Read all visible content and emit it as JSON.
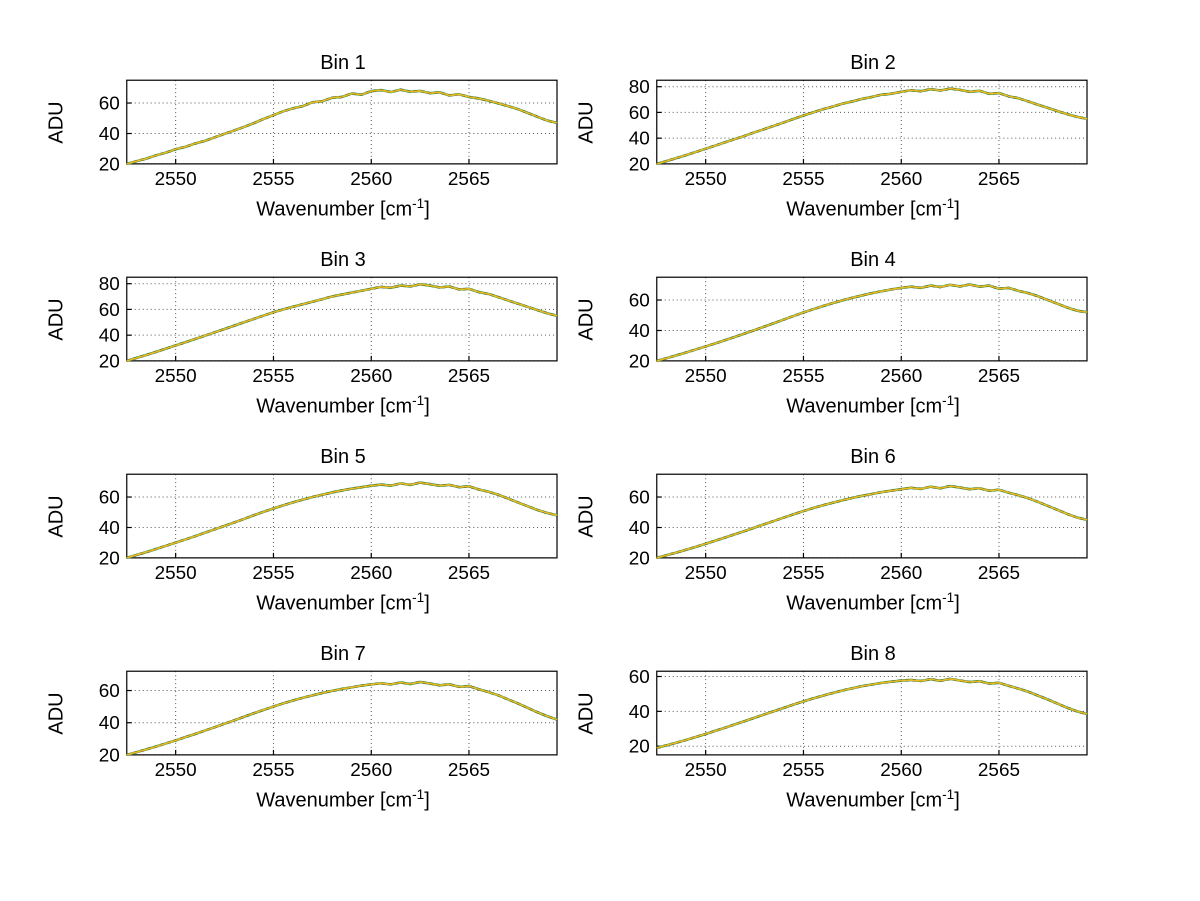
{
  "figure": {
    "background": "#ffffff",
    "ylabel": "ADU",
    "xlabel_prefix": "Wavenumber [cm",
    "xlabel_sup": "-1",
    "xlabel_suffix": "]"
  },
  "chart_data": [
    {
      "type": "line",
      "title": "Bin 1",
      "xlabel": "Wavenumber [cm^-1]",
      "ylabel": "ADU",
      "xlim": [
        2547.5,
        2569.5
      ],
      "ylim": [
        20,
        75
      ],
      "xticks": [
        2550,
        2555,
        2560,
        2565
      ],
      "yticks": [
        20,
        40,
        60
      ],
      "grid": "dotted",
      "line_colors": [
        "#2e9e4f",
        "#1a1a1a",
        "#e8bb22"
      ],
      "x_start": 2547.5,
      "x_step": 0.5,
      "values": [
        20.0,
        21.8,
        23.5,
        25.6,
        27.4,
        29.6,
        31.2,
        33.4,
        35.1,
        37.5,
        39.8,
        42.0,
        44.3,
        46.8,
        49.5,
        52.0,
        54.6,
        56.5,
        58.0,
        60.5,
        61.2,
        63.5,
        64.0,
        66.2,
        65.5,
        67.8,
        68.5,
        67.2,
        68.8,
        67.5,
        68.0,
        66.5,
        67.0,
        65.0,
        65.8,
        64.0,
        63.0,
        61.5,
        59.8,
        58.0,
        56.0,
        53.5,
        51.0,
        48.5,
        47.0
      ]
    },
    {
      "type": "line",
      "title": "Bin 2",
      "xlabel": "Wavenumber [cm^-1]",
      "ylabel": "ADU",
      "xlim": [
        2547.5,
        2569.5
      ],
      "ylim": [
        20,
        85
      ],
      "xticks": [
        2550,
        2555,
        2560,
        2565
      ],
      "yticks": [
        20,
        40,
        60,
        80
      ],
      "grid": "dotted",
      "line_colors": [
        "#2e9e4f",
        "#1a1a1a",
        "#e8bb22"
      ],
      "x_start": 2547.5,
      "x_step": 0.5,
      "values": [
        20.0,
        22.2,
        24.5,
        26.8,
        29.3,
        31.8,
        34.2,
        36.8,
        39.3,
        41.8,
        44.5,
        47.0,
        49.6,
        52.2,
        55.0,
        57.6,
        60.0,
        62.5,
        64.5,
        66.8,
        68.5,
        70.5,
        72.0,
        73.8,
        74.5,
        76.0,
        77.2,
        76.5,
        78.0,
        77.0,
        78.5,
        77.5,
        76.0,
        76.8,
        74.5,
        75.0,
        72.5,
        71.0,
        68.5,
        66.0,
        63.5,
        61.0,
        58.5,
        56.5,
        55.0
      ]
    },
    {
      "type": "line",
      "title": "Bin 3",
      "xlabel": "Wavenumber [cm^-1]",
      "ylabel": "ADU",
      "xlim": [
        2547.5,
        2569.5
      ],
      "ylim": [
        20,
        85
      ],
      "xticks": [
        2550,
        2555,
        2560,
        2565
      ],
      "yticks": [
        20,
        40,
        60,
        80
      ],
      "grid": "dotted",
      "line_colors": [
        "#2e9e4f",
        "#1a1a1a",
        "#e8bb22"
      ],
      "x_start": 2547.5,
      "x_step": 0.5,
      "values": [
        20.0,
        22.3,
        24.6,
        27.0,
        29.5,
        32.0,
        34.5,
        37.0,
        39.6,
        42.2,
        44.8,
        47.4,
        50.0,
        52.6,
        55.2,
        57.8,
        60.0,
        62.0,
        64.0,
        66.0,
        68.0,
        70.0,
        71.5,
        73.0,
        74.5,
        76.0,
        77.5,
        76.8,
        78.5,
        77.8,
        79.5,
        78.5,
        77.0,
        77.8,
        75.5,
        76.0,
        73.5,
        72.0,
        69.5,
        67.0,
        64.5,
        62.0,
        59.5,
        57.0,
        55.0
      ]
    },
    {
      "type": "line",
      "title": "Bin 4",
      "xlabel": "Wavenumber [cm^-1]",
      "ylabel": "ADU",
      "xlim": [
        2547.5,
        2569.5
      ],
      "ylim": [
        20,
        75
      ],
      "xticks": [
        2550,
        2555,
        2560,
        2565
      ],
      "yticks": [
        20,
        40,
        60
      ],
      "grid": "dotted",
      "line_colors": [
        "#2e9e4f",
        "#1a1a1a",
        "#e8bb22"
      ],
      "x_start": 2547.5,
      "x_step": 0.5,
      "values": [
        20.0,
        21.8,
        23.6,
        25.5,
        27.5,
        29.5,
        31.5,
        33.6,
        35.8,
        38.0,
        40.2,
        42.5,
        44.8,
        47.2,
        49.5,
        51.8,
        54.0,
        56.0,
        58.0,
        59.8,
        61.5,
        63.0,
        64.5,
        65.8,
        67.0,
        68.0,
        68.8,
        68.0,
        69.5,
        68.5,
        70.0,
        69.0,
        70.2,
        68.8,
        69.5,
        67.5,
        68.0,
        66.0,
        64.5,
        62.5,
        60.0,
        57.5,
        55.0,
        53.0,
        52.0
      ]
    },
    {
      "type": "line",
      "title": "Bin 5",
      "xlabel": "Wavenumber [cm^-1]",
      "ylabel": "ADU",
      "xlim": [
        2547.5,
        2569.5
      ],
      "ylim": [
        20,
        75
      ],
      "xticks": [
        2550,
        2555,
        2560,
        2565
      ],
      "yticks": [
        20,
        40,
        60
      ],
      "grid": "dotted",
      "line_colors": [
        "#2e9e4f",
        "#1a1a1a",
        "#e8bb22"
      ],
      "x_start": 2547.5,
      "x_step": 0.5,
      "values": [
        20.0,
        21.9,
        23.8,
        25.8,
        27.9,
        30.0,
        32.1,
        34.3,
        36.5,
        38.8,
        41.0,
        43.3,
        45.6,
        48.0,
        50.3,
        52.5,
        54.5,
        56.5,
        58.3,
        60.0,
        61.5,
        63.0,
        64.3,
        65.5,
        66.5,
        67.5,
        68.2,
        67.5,
        69.0,
        68.0,
        69.5,
        68.5,
        67.5,
        68.0,
        66.5,
        67.0,
        65.0,
        63.5,
        61.5,
        59.0,
        56.5,
        54.0,
        51.5,
        49.5,
        48.0
      ]
    },
    {
      "type": "line",
      "title": "Bin 6",
      "xlabel": "Wavenumber [cm^-1]",
      "ylabel": "ADU",
      "xlim": [
        2547.5,
        2569.5
      ],
      "ylim": [
        20,
        75
      ],
      "xticks": [
        2550,
        2555,
        2560,
        2565
      ],
      "yticks": [
        20,
        40,
        60
      ],
      "grid": "dotted",
      "line_colors": [
        "#2e9e4f",
        "#1a1a1a",
        "#e8bb22"
      ],
      "x_start": 2547.5,
      "x_step": 0.5,
      "values": [
        20.0,
        21.8,
        23.5,
        25.4,
        27.3,
        29.3,
        31.3,
        33.4,
        35.5,
        37.7,
        39.9,
        42.1,
        44.3,
        46.5,
        48.7,
        50.8,
        52.8,
        54.6,
        56.3,
        57.9,
        59.4,
        60.8,
        62.0,
        63.2,
        64.2,
        65.2,
        66.0,
        65.3,
        66.8,
        65.8,
        67.2,
        66.2,
        65.2,
        65.8,
        64.2,
        64.8,
        62.8,
        61.2,
        59.2,
        56.8,
        54.2,
        51.5,
        48.8,
        46.5,
        45.0
      ]
    },
    {
      "type": "line",
      "title": "Bin 7",
      "xlabel": "Wavenumber [cm^-1]",
      "ylabel": "ADU",
      "xlim": [
        2547.5,
        2569.5
      ],
      "ylim": [
        20,
        72
      ],
      "xticks": [
        2550,
        2555,
        2560,
        2565
      ],
      "yticks": [
        20,
        40,
        60
      ],
      "grid": "dotted",
      "line_colors": [
        "#2e9e4f",
        "#1a1a1a",
        "#e8bb22"
      ],
      "x_start": 2547.5,
      "x_step": 0.5,
      "values": [
        20.0,
        21.7,
        23.4,
        25.2,
        27.1,
        29.0,
        31.0,
        33.0,
        35.1,
        37.2,
        39.4,
        41.5,
        43.7,
        45.9,
        48.0,
        50.0,
        52.0,
        53.8,
        55.5,
        57.0,
        58.5,
        59.8,
        61.0,
        62.0,
        63.0,
        63.8,
        64.5,
        63.8,
        65.0,
        64.0,
        65.3,
        64.3,
        63.3,
        63.8,
        62.3,
        62.8,
        60.8,
        59.0,
        57.0,
        54.5,
        52.0,
        49.3,
        46.5,
        44.0,
        42.0
      ]
    },
    {
      "type": "line",
      "title": "Bin 8",
      "xlabel": "Wavenumber [cm^-1]",
      "ylabel": "ADU",
      "xlim": [
        2547.5,
        2569.5
      ],
      "ylim": [
        15,
        63
      ],
      "xticks": [
        2550,
        2555,
        2560,
        2565
      ],
      "yticks": [
        20,
        40,
        60
      ],
      "grid": "dotted",
      "line_colors": [
        "#2e9e4f",
        "#1a1a1a",
        "#e8bb22"
      ],
      "x_start": 2547.5,
      "x_step": 0.5,
      "values": [
        19.0,
        20.5,
        22.0,
        23.6,
        25.3,
        27.0,
        28.8,
        30.6,
        32.5,
        34.4,
        36.3,
        38.2,
        40.1,
        42.0,
        43.9,
        45.7,
        47.4,
        49.0,
        50.5,
        51.9,
        53.2,
        54.4,
        55.4,
        56.3,
        57.0,
        57.6,
        58.0,
        57.4,
        58.4,
        57.5,
        58.6,
        57.7,
        56.8,
        57.3,
        55.9,
        56.4,
        54.6,
        53.0,
        51.2,
        49.0,
        46.8,
        44.4,
        42.0,
        40.0,
        38.5
      ]
    }
  ]
}
